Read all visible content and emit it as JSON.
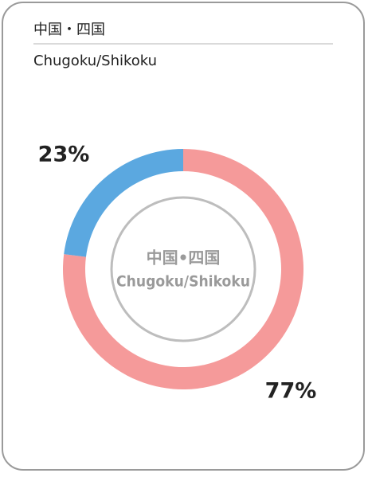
{
  "chart_data": {
    "type": "donut",
    "title": "中国・四国",
    "subtitle": "Chugoku/Shikoku",
    "center_label": [
      "中国•四国",
      "Chugoku/Shikoku"
    ],
    "values": [
      77,
      23
    ],
    "value_labels": [
      "77%",
      "23%"
    ],
    "colors": [
      "#f59a9a",
      "#5ba8e0"
    ]
  }
}
